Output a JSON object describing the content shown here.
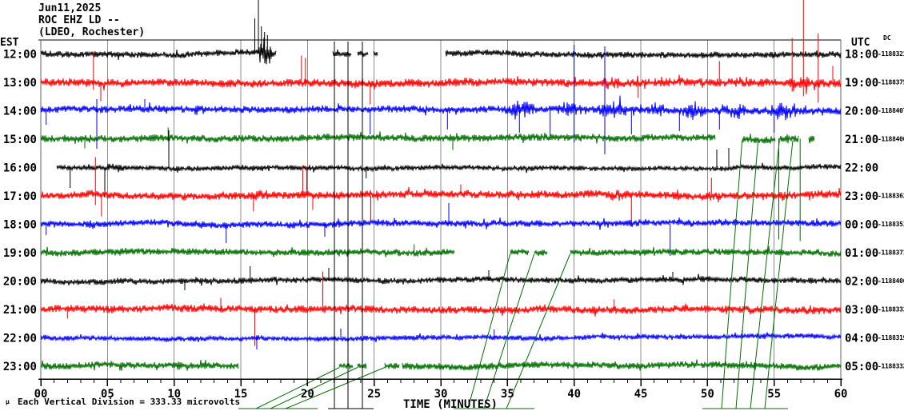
{
  "header": {
    "date": "Jun11,2025",
    "station": "ROC EHZ LD --",
    "location": "(LDEO, Rochester)"
  },
  "axes": {
    "left_label": "EST",
    "right_label": "UTC",
    "dc_label": "DC",
    "xlabel": "TIME (MINUTES)",
    "x_ticks": [
      "00",
      "05",
      "10",
      "15",
      "20",
      "25",
      "30",
      "35",
      "40",
      "45",
      "50",
      "55",
      "60"
    ],
    "minor_tick_every_minutes": 1,
    "major_tick_every_minutes": 5
  },
  "footer": {
    "mu": "µ",
    "scale_note": "Each Vertical Division =  333.33 microvolts"
  },
  "colors": {
    "black": "#000000",
    "red": "#ff0000",
    "blue": "#0000ff",
    "green": "#006e00",
    "grid": "#8c8c8c",
    "border": "#666666"
  },
  "chart_data": {
    "type": "line",
    "title": "Helicorder seismogram ROC EHZ LD (LDEO, Rochester) Jun11,2025",
    "xlabel": "TIME (MINUTES)",
    "x_range_minutes": [
      0,
      60
    ],
    "minutes_per_line": 60,
    "grid": "vertical 5-minute gray lines",
    "vertical_division_microvolts": 333.33,
    "traces": [
      {
        "est": "12:00",
        "utc": "18:00",
        "dc": "-1188321",
        "color": "black",
        "segments": [
          [
            0,
            16.35,
            4
          ],
          [
            16.35,
            17.3,
            13
          ],
          [
            17.3,
            17.65,
            4.5
          ],
          [
            21.9,
            23.3,
            3.6
          ],
          [
            23.75,
            24.55,
            3.6
          ],
          [
            24.95,
            25.25,
            3
          ],
          [
            30.35,
            60,
            4
          ]
        ],
        "events": [],
        "spikes": [
          {
            "t": 16.05,
            "top": 23
          },
          {
            "t": 16.32,
            "top": 0
          },
          {
            "t": 16.55,
            "top": 33
          },
          {
            "t": 16.78,
            "top": 40
          },
          {
            "t": 17.0,
            "top": 44
          }
        ]
      },
      {
        "est": "13:00",
        "utc": "19:00",
        "dc": "-1188375",
        "color": "red",
        "segments": [
          [
            0,
            60,
            5.2
          ]
        ],
        "events": [
          [
            41.3,
            44.3,
            10
          ],
          [
            49.3,
            51.3,
            9
          ],
          [
            55.3,
            58.5,
            11
          ],
          [
            58.5,
            60,
            8
          ]
        ],
        "spikes": [
          {
            "t": 3.95,
            "up": 38,
            "down": 10
          },
          {
            "t": 4.5,
            "down": 24
          },
          {
            "t": 19.55,
            "up": 33
          },
          {
            "t": 19.85,
            "up": 30
          },
          {
            "t": 24.7,
            "down": 28
          },
          {
            "t": 44.8,
            "down": 20
          },
          {
            "t": 50.9,
            "up": 26
          },
          {
            "t": 56.35,
            "up": 55,
            "down": 12
          },
          {
            "t": 57.2,
            "top": 0,
            "down": 18
          },
          {
            "t": 58.3,
            "top": 42,
            "down": 26
          },
          {
            "t": 59.4,
            "up": 20
          }
        ]
      },
      {
        "est": "14:00",
        "utc": "20:00",
        "dc": "-1188407",
        "color": "blue",
        "segments": [
          [
            0,
            60,
            4.5
          ]
        ],
        "events": [
          [
            34.4,
            37.6,
            16
          ],
          [
            37.6,
            41.2,
            12
          ],
          [
            41.2,
            44.6,
            15
          ],
          [
            44.6,
            47.6,
            11
          ],
          [
            47.6,
            50.2,
            13
          ],
          [
            50.6,
            53.6,
            12
          ],
          [
            53.9,
            57.4,
            15
          ],
          [
            57.4,
            58.6,
            8
          ]
        ],
        "spikes": [
          {
            "t": 0.4,
            "down": 18
          },
          {
            "t": 4.2,
            "down": 48,
            "up": 14
          },
          {
            "t": 7.8,
            "up": 14
          },
          {
            "t": 24.7,
            "down": 30
          },
          {
            "t": 30.5,
            "down": 24
          },
          {
            "t": 35.9,
            "down": 28
          },
          {
            "t": 38.2,
            "down": 32
          },
          {
            "t": 40.0,
            "up": 82,
            "down": 40
          },
          {
            "t": 42.3,
            "up": 80,
            "down": 55
          },
          {
            "t": 44.3,
            "down": 30
          },
          {
            "t": 47.9,
            "down": 26
          },
          {
            "t": 50.9,
            "down": 24
          },
          {
            "t": 55.0,
            "down": 28
          }
        ]
      },
      {
        "est": "15:00",
        "utc": "21:00",
        "dc": "-1188400",
        "color": "green",
        "segments": [
          [
            0,
            50.6,
            4.5
          ],
          [
            52.6,
            55.1,
            4.8
          ],
          [
            55.4,
            56.8,
            4.8
          ],
          [
            57.6,
            58.0,
            4
          ]
        ],
        "events": [],
        "spikes": [
          {
            "t": 3.3,
            "down": 12
          },
          {
            "t": 9.55,
            "up": 14
          },
          {
            "t": 30.9,
            "down": 14
          },
          {
            "t": 55.35,
            "down": 126
          },
          {
            "t": 56.95,
            "down": 128
          }
        ]
      },
      {
        "est": "16:00",
        "utc": "22:00",
        "dc": "",
        "color": "black",
        "segments": [
          [
            1.2,
            60,
            3.2
          ]
        ],
        "events": [
          [
            4.5,
            6.5,
            7
          ]
        ],
        "spikes": [
          {
            "t": 2.2,
            "down": 26
          },
          {
            "t": 4.8,
            "down": 38
          },
          {
            "t": 9.6,
            "up": 46
          },
          {
            "t": 24.4,
            "down": 14
          },
          {
            "t": 50.7,
            "up": 22
          },
          {
            "t": 51.6,
            "up": 24
          }
        ]
      },
      {
        "est": "17:00",
        "utc": "23:00",
        "dc": "-1188363",
        "color": "red",
        "segments": [
          [
            0,
            60,
            5
          ]
        ],
        "events": [
          [
            15,
            18,
            8
          ],
          [
            42,
            44.5,
            9
          ],
          [
            49,
            51,
            8
          ]
        ],
        "spikes": [
          {
            "t": 4.1,
            "up": 48,
            "down": 12
          },
          {
            "t": 4.55,
            "down": 26
          },
          {
            "t": 15.95,
            "down": 20
          },
          {
            "t": 19.65,
            "up": 38
          },
          {
            "t": 19.95,
            "up": 36
          },
          {
            "t": 20.4,
            "down": 18
          },
          {
            "t": 24.75,
            "down": 34
          },
          {
            "t": 31.5,
            "up": 14
          },
          {
            "t": 44.3,
            "down": 38
          },
          {
            "t": 50.3,
            "up": 22
          }
        ]
      },
      {
        "est": "18:00",
        "utc": "00:00",
        "dc": "-1188351",
        "color": "blue",
        "segments": [
          [
            0,
            60,
            4.2
          ]
        ],
        "events": [
          [
            3.4,
            4.3,
            10
          ]
        ],
        "spikes": [
          {
            "t": 0.4,
            "down": 14
          },
          {
            "t": 13.9,
            "down": 24
          },
          {
            "t": 21.3,
            "down": 16
          },
          {
            "t": 30.6,
            "up": 26
          },
          {
            "t": 47.2,
            "down": 40
          }
        ]
      },
      {
        "est": "19:00",
        "utc": "01:00",
        "dc": "-1188371",
        "color": "green",
        "segments": [
          [
            0,
            31.0,
            4.2
          ],
          [
            35.2,
            36.6,
            4.4
          ],
          [
            37.0,
            38.0,
            4.4
          ],
          [
            39.7,
            60,
            4.2
          ]
        ],
        "events": [],
        "spikes": [
          {
            "t": 28.0,
            "up": 10
          }
        ]
      },
      {
        "est": "20:00",
        "utc": "02:00",
        "dc": "-1188406",
        "color": "black",
        "segments": [
          [
            0,
            60,
            3.8
          ]
        ],
        "events": [],
        "spikes": [
          {
            "t": 10.8,
            "down": 12
          },
          {
            "t": 15.7,
            "up": 18
          },
          {
            "t": 21.6,
            "up": 16
          },
          {
            "t": 33.6,
            "up": 13
          },
          {
            "t": 47.4,
            "up": 11
          }
        ]
      },
      {
        "est": "21:00",
        "utc": "03:00",
        "dc": "-1188333",
        "color": "red",
        "segments": [
          [
            0,
            60,
            4.8
          ]
        ],
        "events": [],
        "spikes": [
          {
            "t": 2.0,
            "down": 12
          },
          {
            "t": 13.5,
            "up": 14
          },
          {
            "t": 16.05,
            "down": 46
          },
          {
            "t": 21.15,
            "up": 47
          },
          {
            "t": 43.0,
            "up": 12
          }
        ]
      },
      {
        "est": "22:00",
        "utc": "04:00",
        "dc": "-1188319",
        "color": "blue",
        "segments": [
          [
            0,
            60,
            3.2
          ]
        ],
        "events": [
          [
            52,
            56,
            5
          ]
        ],
        "spikes": [
          {
            "t": 16.2,
            "down": 15
          },
          {
            "t": 22.5,
            "up": 11
          },
          {
            "t": 34.0,
            "up": 10
          },
          {
            "t": 52.6,
            "up": 9
          }
        ]
      },
      {
        "est": "23:00",
        "utc": "05:00",
        "dc": "-1188332",
        "color": "green",
        "segments": [
          [
            0,
            14.8,
            4.2
          ],
          [
            22.4,
            23.4,
            3.8
          ],
          [
            23.75,
            24.4,
            3.8
          ],
          [
            25.8,
            26.9,
            4.2
          ],
          [
            27.1,
            60,
            4.2
          ]
        ],
        "events": [
          [
            33,
            35,
            6
          ]
        ],
        "spikes": []
      }
    ],
    "gap_lines": [
      {
        "t1": 22.02,
        "r1": "top",
        "t2": 22.02,
        "r2": "floor",
        "color": "black"
      },
      {
        "t1": 23.04,
        "r1": "top",
        "t2": 23.04,
        "r2": "floor",
        "color": "black"
      },
      {
        "t1": 24.12,
        "r1": "top",
        "t2": 24.12,
        "r2": "floor",
        "color": "black"
      },
      {
        "t1": 21.54,
        "r1": "floor",
        "t2": 24.96,
        "r2": "floor",
        "color": "black"
      },
      {
        "t1": 14.82,
        "r1": "floor",
        "t2": 20.76,
        "r2": "floor",
        "color": "green"
      },
      {
        "t1": 16.14,
        "r1": "floor",
        "t2": 22.4,
        "r2": 11,
        "color": "green"
      },
      {
        "t1": 17.22,
        "r1": "floor",
        "t2": 23.75,
        "r2": 11,
        "color": "green"
      },
      {
        "t1": 18.36,
        "r1": "floor",
        "t2": 25.8,
        "r2": 11,
        "color": "green"
      },
      {
        "t1": 30.96,
        "r1": "floor",
        "t2": 37.02,
        "r2": "floor",
        "color": "green"
      },
      {
        "t1": 32.04,
        "r1": "floor",
        "t2": 35.2,
        "r2": 7,
        "color": "green"
      },
      {
        "t1": 33.24,
        "r1": "floor",
        "t2": 37.0,
        "r2": 7,
        "color": "green"
      },
      {
        "t1": 34.92,
        "r1": "floor",
        "t2": 39.7,
        "r2": 7,
        "color": "green"
      },
      {
        "t1": 49.62,
        "r1": "floor",
        "t2": 56.04,
        "r2": "floor",
        "color": "green"
      },
      {
        "t1": 51.06,
        "r1": "floor",
        "t2": 52.6,
        "r2": 3,
        "color": "green"
      },
      {
        "t1": 52.14,
        "r1": "floor",
        "t2": 53.8,
        "r2": 3,
        "color": "green"
      },
      {
        "t1": 53.22,
        "r1": "floor",
        "t2": 55.4,
        "r2": 3,
        "color": "green"
      },
      {
        "t1": 54.3,
        "r1": "floor",
        "t2": 56.4,
        "r2": 3,
        "color": "green"
      }
    ]
  }
}
